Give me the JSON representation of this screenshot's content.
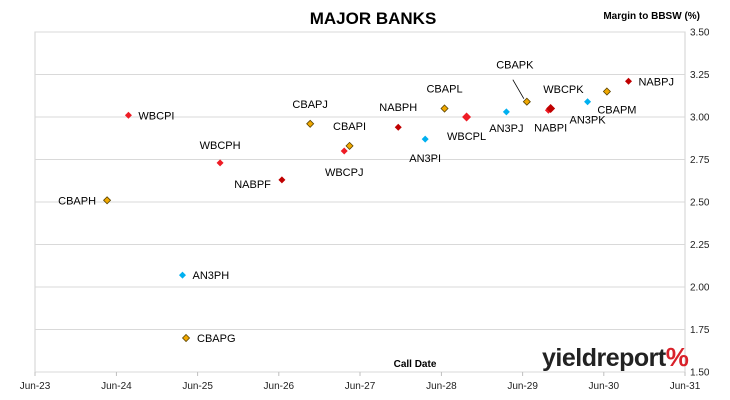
{
  "chart_data": {
    "type": "scatter",
    "title": "MAJOR BANKS",
    "ylabel": "Margin to BBSW (%)",
    "xlabel": "Call Date",
    "xlim": [
      "2023-06",
      "2031-06"
    ],
    "ylim": [
      1.5,
      3.5
    ],
    "x_ticks": [
      "Jun-23",
      "Jun-24",
      "Jun-25",
      "Jun-26",
      "Jun-27",
      "Jun-28",
      "Jun-29",
      "Jun-30",
      "Jun-31"
    ],
    "y_ticks": [
      "1.50",
      "1.75",
      "2.00",
      "2.25",
      "2.50",
      "2.75",
      "3.00",
      "3.25",
      "3.50"
    ],
    "grid": "horizontal",
    "colors": {
      "CBA": "#f0a800",
      "WBC": "#ee1c25",
      "NAB": "#c00000",
      "ANZ": "#00b0f0"
    },
    "points": [
      {
        "label": "CBAPH",
        "x": "2024-04-20",
        "y": 2.51,
        "issuer": "CBA"
      },
      {
        "label": "WBCPI",
        "x": "2024-07-25",
        "y": 3.01,
        "issuer": "WBC"
      },
      {
        "label": "AN3PH",
        "x": "2025-03-25",
        "y": 2.07,
        "issuer": "ANZ"
      },
      {
        "label": "CBAPG",
        "x": "2025-04-10",
        "y": 1.7,
        "issuer": "CBA"
      },
      {
        "label": "WBCPH",
        "x": "2025-09-10",
        "y": 2.73,
        "issuer": "WBC"
      },
      {
        "label": "NABPF",
        "x": "2026-06-15",
        "y": 2.63,
        "issuer": "NAB"
      },
      {
        "label": "CBAPJ",
        "x": "2026-10-20",
        "y": 2.96,
        "issuer": "CBA"
      },
      {
        "label": "WBCPJ",
        "x": "2027-03-22",
        "y": 2.8,
        "issuer": "WBC"
      },
      {
        "label": "CBAPI",
        "x": "2027-04-15",
        "y": 2.83,
        "issuer": "CBA"
      },
      {
        "label": "NABPH",
        "x": "2027-11-20",
        "y": 2.94,
        "issuer": "NAB"
      },
      {
        "label": "AN3PI",
        "x": "2028-03-20",
        "y": 2.87,
        "issuer": "ANZ"
      },
      {
        "label": "CBAPL",
        "x": "2028-06-15",
        "y": 3.05,
        "issuer": "CBA"
      },
      {
        "label": "WBCPL",
        "x": "2028-09-22",
        "y": 3.0,
        "issuer": "WBC"
      },
      {
        "label": "AN3PJ",
        "x": "2029-03-20",
        "y": 3.03,
        "issuer": "ANZ"
      },
      {
        "label": "CBAPK",
        "x": "2029-06-20",
        "y": 3.09,
        "issuer": "CBA"
      },
      {
        "label": "WBCPK",
        "x": "2029-09-25",
        "y": 3.04,
        "issuer": "WBC"
      },
      {
        "label": "NABPI",
        "x": "2029-10-05",
        "y": 3.05,
        "issuer": "NAB"
      },
      {
        "label": "AN3PK",
        "x": "2030-03-20",
        "y": 3.09,
        "issuer": "ANZ"
      },
      {
        "label": "CBAPM",
        "x": "2030-06-15",
        "y": 3.15,
        "issuer": "CBA"
      },
      {
        "label": "NABPJ",
        "x": "2030-09-20",
        "y": 3.21,
        "issuer": "NAB"
      }
    ]
  },
  "brand": {
    "name": "yieldreport",
    "mark": "%"
  }
}
